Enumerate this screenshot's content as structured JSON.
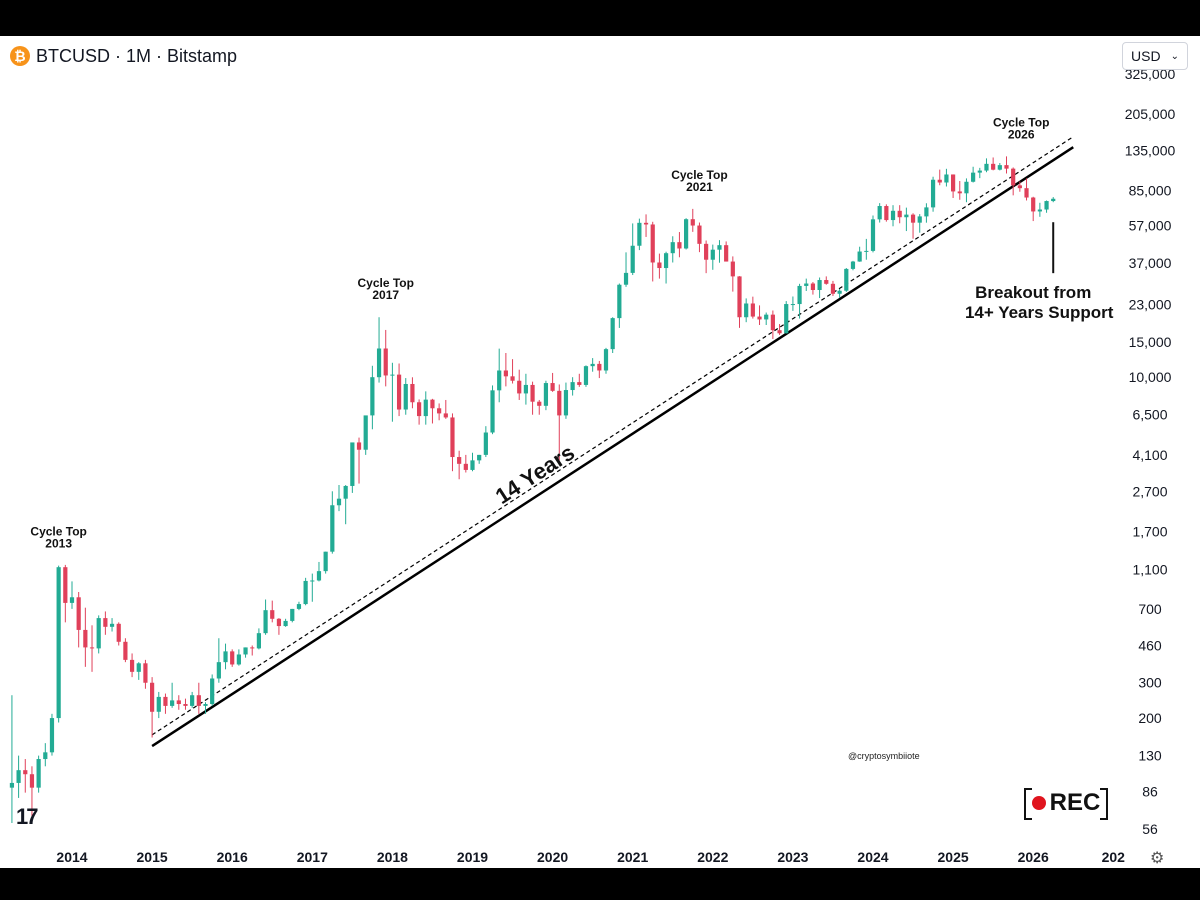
{
  "header": {
    "icon_glyph": "₿",
    "title": "BTCUSD · 1M · Bitstamp"
  },
  "currency": {
    "value": "USD",
    "chevron_icon": "chevron-down-icon"
  },
  "branding": {
    "tv_logo": "17",
    "watermark": "@cryptosymbiiote",
    "rec_label": "REC"
  },
  "settings": {
    "icon": "gear-icon",
    "glyph": "⚙"
  },
  "colors": {
    "up": "#26a69a",
    "down": "#ef5350",
    "up_candle": "#22ab94",
    "down_candle": "#e0405a",
    "line": "#000000",
    "background": "#ffffff"
  },
  "chart_data": {
    "type": "candlestick",
    "title": "BTCUSD · 1M · Bitstamp",
    "y_scale": "log",
    "y_ticks": [
      56,
      86,
      130,
      200,
      300,
      460,
      700,
      1100,
      1700,
      2700,
      4100,
      6500,
      10000,
      15000,
      23000,
      37000,
      57000,
      85000,
      135000,
      205000,
      325000
    ],
    "y_tick_labels": [
      "56",
      "86",
      "130",
      "200",
      "300",
      "460",
      "700",
      "1,100",
      "1,700",
      "2,700",
      "4,100",
      "6,500",
      "10,000",
      "15,000",
      "23,000",
      "37,000",
      "57,000",
      "85,000",
      "135,000",
      "205,000",
      "325,000"
    ],
    "x_ticks": [
      "2014",
      "2015",
      "2016",
      "2017",
      "2018",
      "2019",
      "2020",
      "2021",
      "2022",
      "2023",
      "2024",
      "2025",
      "2026",
      "202"
    ],
    "x_range": [
      "2013-04",
      "2026-12"
    ],
    "ohlc": [
      [
        90,
        260,
        60,
        95
      ],
      [
        95,
        130,
        80,
        110
      ],
      [
        110,
        125,
        85,
        105
      ],
      [
        105,
        115,
        65,
        90
      ],
      [
        90,
        130,
        85,
        125
      ],
      [
        125,
        150,
        115,
        135
      ],
      [
        135,
        210,
        130,
        200
      ],
      [
        200,
        1150,
        190,
        1130
      ],
      [
        1130,
        1160,
        600,
        750
      ],
      [
        750,
        960,
        700,
        800
      ],
      [
        800,
        850,
        450,
        550
      ],
      [
        550,
        710,
        360,
        450
      ],
      [
        450,
        580,
        340,
        445
      ],
      [
        445,
        650,
        420,
        630
      ],
      [
        630,
        680,
        520,
        570
      ],
      [
        570,
        630,
        540,
        590
      ],
      [
        590,
        600,
        460,
        480
      ],
      [
        480,
        500,
        380,
        390
      ],
      [
        390,
        420,
        320,
        340
      ],
      [
        340,
        380,
        310,
        375
      ],
      [
        375,
        390,
        280,
        300
      ],
      [
        300,
        320,
        160,
        215
      ],
      [
        215,
        270,
        200,
        255
      ],
      [
        255,
        265,
        210,
        230
      ],
      [
        230,
        300,
        225,
        245
      ],
      [
        245,
        260,
        220,
        235
      ],
      [
        235,
        250,
        220,
        230
      ],
      [
        230,
        270,
        225,
        260
      ],
      [
        260,
        300,
        210,
        230
      ],
      [
        230,
        240,
        210,
        235
      ],
      [
        235,
        330,
        230,
        315
      ],
      [
        315,
        500,
        300,
        380
      ],
      [
        380,
        470,
        350,
        430
      ],
      [
        430,
        440,
        360,
        370
      ],
      [
        370,
        440,
        365,
        415
      ],
      [
        415,
        450,
        400,
        450
      ],
      [
        450,
        460,
        410,
        445
      ],
      [
        445,
        560,
        440,
        530
      ],
      [
        530,
        780,
        520,
        690
      ],
      [
        690,
        770,
        600,
        625
      ],
      [
        625,
        630,
        520,
        575
      ],
      [
        575,
        625,
        570,
        610
      ],
      [
        610,
        700,
        600,
        700
      ],
      [
        700,
        760,
        690,
        740
      ],
      [
        740,
        1000,
        730,
        965
      ],
      [
        965,
        1050,
        760,
        970
      ],
      [
        970,
        1200,
        960,
        1080
      ],
      [
        1080,
        1350,
        1050,
        1350
      ],
      [
        1350,
        2700,
        1320,
        2300
      ],
      [
        2300,
        2900,
        2150,
        2480
      ],
      [
        2480,
        2900,
        1850,
        2870
      ],
      [
        2870,
        4700,
        2650,
        4730
      ],
      [
        4730,
        5000,
        2950,
        4350
      ],
      [
        4350,
        6400,
        4100,
        6450
      ],
      [
        6450,
        11400,
        5500,
        10000
      ],
      [
        10000,
        19900,
        9400,
        13900
      ],
      [
        13900,
        17200,
        9000,
        10200
      ],
      [
        10200,
        11800,
        6000,
        10300
      ],
      [
        10300,
        11700,
        6400,
        6900
      ],
      [
        6900,
        9900,
        6500,
        9250
      ],
      [
        9250,
        9990,
        7000,
        7500
      ],
      [
        7500,
        7750,
        5800,
        6400
      ],
      [
        6400,
        8500,
        5800,
        7730
      ],
      [
        7730,
        7800,
        5880,
        7000
      ],
      [
        7000,
        7400,
        6100,
        6600
      ],
      [
        6600,
        7700,
        6200,
        6300
      ],
      [
        6300,
        6600,
        3400,
        4000
      ],
      [
        4000,
        4300,
        3100,
        3700
      ],
      [
        3700,
        4100,
        3350,
        3450
      ],
      [
        3450,
        4200,
        3400,
        3850
      ],
      [
        3850,
        4100,
        3700,
        4100
      ],
      [
        4100,
        5700,
        4000,
        5300
      ],
      [
        5300,
        9100,
        5200,
        8600
      ],
      [
        8600,
        13880,
        7500,
        10800
      ],
      [
        10800,
        13200,
        9000,
        10100
      ],
      [
        10100,
        12300,
        9300,
        9600
      ],
      [
        9600,
        10900,
        7700,
        8300
      ],
      [
        8300,
        10400,
        7300,
        9150
      ],
      [
        9150,
        9500,
        6500,
        7550
      ],
      [
        7550,
        7700,
        6500,
        7200
      ],
      [
        7200,
        9600,
        6850,
        9350
      ],
      [
        9350,
        10500,
        8450,
        8550
      ],
      [
        8550,
        9200,
        3850,
        6450
      ],
      [
        6450,
        9400,
        6200,
        8630
      ],
      [
        8630,
        10000,
        8100,
        9450
      ],
      [
        9450,
        10400,
        8950,
        9150
      ],
      [
        9150,
        11450,
        8950,
        11350
      ],
      [
        11350,
        12450,
        10650,
        11650
      ],
      [
        11650,
        12050,
        9900,
        10800
      ],
      [
        10800,
        14000,
        10400,
        13800
      ],
      [
        13800,
        19900,
        13200,
        19700
      ],
      [
        19700,
        29300,
        17600,
        28900
      ],
      [
        28900,
        41900,
        28200,
        33100
      ],
      [
        33100,
        58400,
        32300,
        45200
      ],
      [
        45200,
        61700,
        43000,
        58800
      ],
      [
        58800,
        64800,
        50000,
        57700
      ],
      [
        57700,
        59500,
        30000,
        37300
      ],
      [
        37300,
        41300,
        31000,
        35000
      ],
      [
        35000,
        42200,
        29300,
        41500
      ],
      [
        41500,
        50400,
        37300,
        47100
      ],
      [
        47100,
        52900,
        39600,
        43800
      ],
      [
        43800,
        62000,
        43300,
        61300
      ],
      [
        61300,
        69000,
        53000,
        57000
      ],
      [
        57000,
        59000,
        42000,
        46200
      ],
      [
        46200,
        48000,
        33000,
        38500
      ],
      [
        38500,
        45800,
        34300,
        43200
      ],
      [
        43200,
        48200,
        37200,
        45500
      ],
      [
        45500,
        47500,
        37700,
        37700
      ],
      [
        37700,
        40000,
        26700,
        31800
      ],
      [
        31800,
        31900,
        17600,
        19900
      ],
      [
        19900,
        24700,
        18800,
        23300
      ],
      [
        23300,
        25200,
        19600,
        20050
      ],
      [
        20050,
        22800,
        18200,
        19400
      ],
      [
        19400,
        21000,
        18200,
        20500
      ],
      [
        20500,
        21500,
        15500,
        17150
      ],
      [
        17150,
        18400,
        16250,
        16550
      ],
      [
        16550,
        23950,
        16500,
        23150
      ],
      [
        23150,
        25250,
        21400,
        23150
      ],
      [
        23150,
        29200,
        19600,
        28500
      ],
      [
        28500,
        31000,
        26900,
        29300
      ],
      [
        29300,
        29800,
        25800,
        27200
      ],
      [
        27200,
        31400,
        24800,
        30500
      ],
      [
        30500,
        31800,
        28900,
        29200
      ],
      [
        29200,
        30200,
        25400,
        26050
      ],
      [
        26050,
        27500,
        24900,
        26970
      ],
      [
        26970,
        35000,
        26600,
        34650
      ],
      [
        34650,
        38000,
        34100,
        37700
      ],
      [
        37700,
        44700,
        37600,
        42300
      ],
      [
        42300,
        48900,
        38500,
        42600
      ],
      [
        42600,
        64000,
        41900,
        61200
      ],
      [
        61200,
        73700,
        59000,
        71300
      ],
      [
        71300,
        72700,
        59600,
        60700
      ],
      [
        60700,
        72000,
        56500,
        67500
      ],
      [
        67500,
        72000,
        58500,
        62700
      ],
      [
        62700,
        70000,
        53500,
        64600
      ],
      [
        64600,
        65600,
        49000,
        58900
      ],
      [
        58900,
        65000,
        52500,
        63300
      ],
      [
        63300,
        73600,
        58900,
        70200
      ],
      [
        70200,
        99800,
        66800,
        96400
      ],
      [
        96400,
        108300,
        90500,
        93400
      ],
      [
        93400,
        109300,
        89200,
        102400
      ],
      [
        102400,
        102500,
        78200,
        84300
      ],
      [
        84300,
        95000,
        76600,
        82500
      ],
      [
        82500,
        97900,
        74500,
        94200
      ],
      [
        94200,
        111900,
        93400,
        104600
      ],
      [
        104600,
        110500,
        98200,
        107100
      ],
      [
        107100,
        123200,
        105100,
        115700
      ],
      [
        115700,
        124500,
        107400,
        108200
      ],
      [
        108200,
        116800,
        107300,
        114000
      ],
      [
        114000,
        126100,
        103500,
        109500
      ],
      [
        109500,
        111000,
        80600,
        90400
      ],
      [
        90400,
        94500,
        84000,
        87500
      ],
      [
        87500,
        97900,
        76000,
        78600
      ],
      [
        78600,
        79300,
        60000,
        67000
      ],
      [
        67000,
        74000,
        63000,
        68500
      ],
      [
        68500,
        76000,
        66000,
        75500
      ],
      [
        75500,
        79000,
        74500,
        77500
      ]
    ],
    "annotations": [
      {
        "label": "Cycle Top",
        "year": "2013"
      },
      {
        "label": "Cycle Top",
        "year": "2017"
      },
      {
        "label": "Cycle Top",
        "year": "2021"
      },
      {
        "label": "Cycle Top",
        "year": "2026"
      },
      {
        "label": "14 Years"
      },
      {
        "label": "Breakout from",
        "label2": "14+ Years Support"
      }
    ],
    "support_line": {
      "start": [
        "2015-01",
        145
      ],
      "end": [
        "2026-07",
        140000
      ]
    },
    "support_line_offset": {
      "start": [
        "2015-01",
        165
      ],
      "end": [
        "2026-07",
        158000
      ]
    }
  }
}
